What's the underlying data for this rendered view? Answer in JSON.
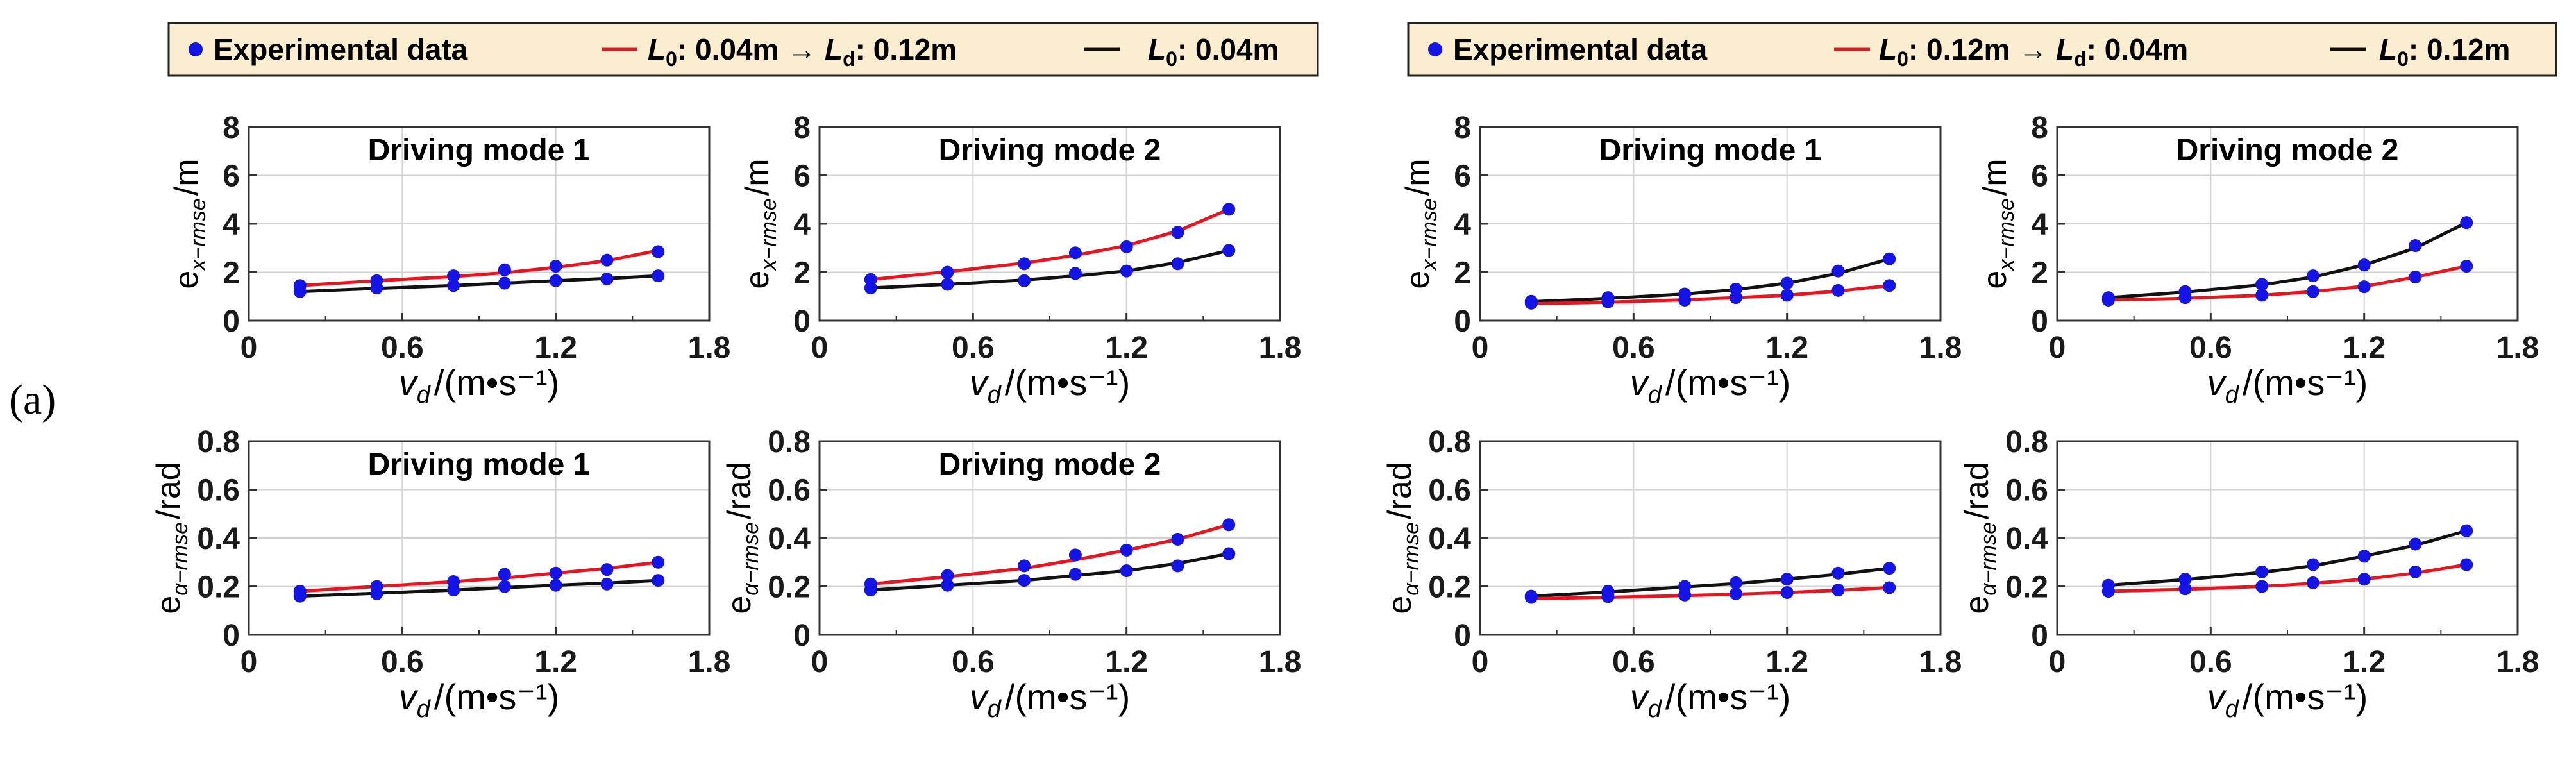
{
  "panel_label": "(a)",
  "colors": {
    "experimental": "#1414e6",
    "red_model": "#e8141e",
    "black_model": "#111111",
    "legend_bg": "#fbeed0"
  },
  "legends": [
    {
      "experimental": "Experimental data",
      "red": {
        "prefix": "L",
        "sub": "0",
        "mid": ": 0.04m → ",
        "prefix2": "L",
        "sub2": "d",
        "suffix": ": 0.12m"
      },
      "black": {
        "prefix": "L",
        "sub": "0",
        "suffix": ": 0.04m"
      }
    },
    {
      "experimental": "Experimental data",
      "red": {
        "prefix": "L",
        "sub": "0",
        "mid": ": 0.12m → ",
        "prefix2": "L",
        "sub2": "d",
        "suffix": ": 0.04m"
      },
      "black": {
        "prefix": "L",
        "sub": "0",
        "suffix": ": 0.12m"
      }
    }
  ],
  "xlabel": {
    "main": "v",
    "sub": "d",
    "unit": "/(m•s⁻¹)"
  },
  "ylabels": {
    "x": {
      "main": "e",
      "sub": "x−rmse",
      "unit": "/m"
    },
    "alpha": {
      "main": "e",
      "sub": "α−rmse",
      "unit": "/rad"
    }
  },
  "chart_data": [
    {
      "type": "line",
      "title": "Driving mode 1",
      "row": 0,
      "col": 0,
      "legend_group": 0,
      "ykind": "x",
      "xlim": [
        0,
        1.8
      ],
      "ylim": [
        0,
        8
      ],
      "xticks": [
        "0",
        "0.6",
        "1.2",
        "1.8"
      ],
      "xminor": [
        0.3,
        0.9,
        1.5
      ],
      "yticks": [
        "0",
        "2",
        "4",
        "6",
        "8"
      ],
      "grid": true,
      "x": [
        0.2,
        0.5,
        0.8,
        1.0,
        1.2,
        1.4,
        1.6
      ],
      "series": [
        {
          "name": "Experimental data",
          "style": "points",
          "color": "#1414e6",
          "values": [
            1.45,
            1.65,
            1.85,
            2.1,
            2.25,
            2.5,
            2.85
          ]
        },
        {
          "name": "red",
          "style": "line",
          "color": "#e8141e",
          "values": [
            1.45,
            1.65,
            1.82,
            1.98,
            2.2,
            2.48,
            2.9
          ]
        },
        {
          "name": "Experimental data",
          "style": "points",
          "color": "#1414e6",
          "values": [
            1.2,
            1.35,
            1.45,
            1.55,
            1.65,
            1.72,
            1.85
          ]
        },
        {
          "name": "black",
          "style": "line",
          "color": "#111111",
          "values": [
            1.2,
            1.33,
            1.45,
            1.55,
            1.65,
            1.74,
            1.85
          ]
        }
      ]
    },
    {
      "type": "line",
      "title": "Driving mode 2",
      "row": 0,
      "col": 1,
      "legend_group": 0,
      "ykind": "x",
      "xlim": [
        0,
        1.8
      ],
      "ylim": [
        0,
        8
      ],
      "xticks": [
        "0",
        "0.6",
        "1.2",
        "1.8"
      ],
      "xminor": [
        0.3,
        0.9,
        1.5
      ],
      "yticks": [
        "0",
        "2",
        "4",
        "6",
        "8"
      ],
      "grid": true,
      "x": [
        0.2,
        0.5,
        0.8,
        1.0,
        1.2,
        1.4,
        1.6
      ],
      "series": [
        {
          "name": "Experimental data",
          "style": "points",
          "color": "#1414e6",
          "values": [
            1.7,
            2.0,
            2.35,
            2.8,
            3.05,
            3.65,
            4.6
          ]
        },
        {
          "name": "red",
          "style": "line",
          "color": "#e8141e",
          "values": [
            1.7,
            2.02,
            2.38,
            2.7,
            3.1,
            3.7,
            4.6
          ]
        },
        {
          "name": "Experimental data",
          "style": "points",
          "color": "#1414e6",
          "values": [
            1.35,
            1.5,
            1.65,
            1.95,
            2.05,
            2.35,
            2.9
          ]
        },
        {
          "name": "black",
          "style": "line",
          "color": "#111111",
          "values": [
            1.35,
            1.5,
            1.68,
            1.85,
            2.05,
            2.4,
            2.9
          ]
        }
      ]
    },
    {
      "type": "line",
      "title": "Driving mode 1",
      "row": 0,
      "col": 2,
      "legend_group": 1,
      "ykind": "x",
      "xlim": [
        0,
        1.8
      ],
      "ylim": [
        0,
        8
      ],
      "xticks": [
        "0",
        "0.6",
        "1.2",
        "1.8"
      ],
      "xminor": [
        0.3,
        0.9,
        1.5
      ],
      "yticks": [
        "0",
        "2",
        "4",
        "6",
        "8"
      ],
      "grid": true,
      "x": [
        0.2,
        0.5,
        0.8,
        1.0,
        1.2,
        1.4,
        1.6
      ],
      "series": [
        {
          "name": "Experimental data",
          "style": "points",
          "color": "#1414e6",
          "values": [
            0.8,
            0.95,
            1.1,
            1.3,
            1.55,
            2.05,
            2.55
          ]
        },
        {
          "name": "black",
          "style": "line",
          "color": "#111111",
          "values": [
            0.78,
            0.92,
            1.1,
            1.28,
            1.55,
            1.95,
            2.55
          ]
        },
        {
          "name": "Experimental data",
          "style": "points",
          "color": "#1414e6",
          "values": [
            0.72,
            0.78,
            0.85,
            0.95,
            1.05,
            1.25,
            1.45
          ]
        },
        {
          "name": "red",
          "style": "line",
          "color": "#e8141e",
          "values": [
            0.7,
            0.76,
            0.86,
            0.95,
            1.05,
            1.22,
            1.45
          ]
        }
      ]
    },
    {
      "type": "line",
      "title": "Driving mode 2",
      "row": 0,
      "col": 3,
      "legend_group": 1,
      "ykind": "x",
      "xlim": [
        0,
        1.8
      ],
      "ylim": [
        0,
        8
      ],
      "xticks": [
        "0",
        "0.6",
        "1.2",
        "1.8"
      ],
      "xminor": [
        0.3,
        0.9,
        1.5
      ],
      "yticks": [
        "0",
        "2",
        "4",
        "6",
        "8"
      ],
      "grid": true,
      "x": [
        0.2,
        0.5,
        0.8,
        1.0,
        1.2,
        1.4,
        1.6
      ],
      "series": [
        {
          "name": "Experimental data",
          "style": "points",
          "color": "#1414e6",
          "values": [
            0.95,
            1.2,
            1.5,
            1.85,
            2.3,
            3.1,
            4.05
          ]
        },
        {
          "name": "black",
          "style": "line",
          "color": "#111111",
          "values": [
            0.95,
            1.18,
            1.48,
            1.8,
            2.3,
            3.0,
            4.05
          ]
        },
        {
          "name": "Experimental data",
          "style": "points",
          "color": "#1414e6",
          "values": [
            0.85,
            0.95,
            1.05,
            1.2,
            1.4,
            1.8,
            2.25
          ]
        },
        {
          "name": "red",
          "style": "line",
          "color": "#e8141e",
          "values": [
            0.85,
            0.92,
            1.05,
            1.2,
            1.42,
            1.8,
            2.25
          ]
        }
      ]
    },
    {
      "type": "line",
      "title": "Driving mode 1",
      "row": 1,
      "col": 0,
      "legend_group": 0,
      "ykind": "alpha",
      "xlim": [
        0,
        1.8
      ],
      "ylim": [
        0,
        0.8
      ],
      "xticks": [
        "0",
        "0.6",
        "1.2",
        "1.8"
      ],
      "xminor": [
        0.3,
        0.9,
        1.5
      ],
      "yticks": [
        "0",
        "0.2",
        "0.4",
        "0.6",
        "0.8"
      ],
      "grid": true,
      "x": [
        0.2,
        0.5,
        0.8,
        1.0,
        1.2,
        1.4,
        1.6
      ],
      "series": [
        {
          "name": "Experimental data",
          "style": "points",
          "color": "#1414e6",
          "values": [
            0.18,
            0.2,
            0.22,
            0.25,
            0.255,
            0.27,
            0.3
          ]
        },
        {
          "name": "red",
          "style": "line",
          "color": "#e8141e",
          "values": [
            0.18,
            0.2,
            0.22,
            0.235,
            0.255,
            0.275,
            0.3
          ]
        },
        {
          "name": "Experimental data",
          "style": "points",
          "color": "#1414e6",
          "values": [
            0.16,
            0.17,
            0.185,
            0.2,
            0.205,
            0.21,
            0.225
          ]
        },
        {
          "name": "black",
          "style": "line",
          "color": "#111111",
          "values": [
            0.16,
            0.172,
            0.185,
            0.195,
            0.205,
            0.214,
            0.225
          ]
        }
      ]
    },
    {
      "type": "line",
      "title": "Driving mode 2",
      "row": 1,
      "col": 1,
      "legend_group": 0,
      "ykind": "alpha",
      "xlim": [
        0,
        1.8
      ],
      "ylim": [
        0,
        0.8
      ],
      "xticks": [
        "0",
        "0.6",
        "1.2",
        "1.8"
      ],
      "xminor": [
        0.3,
        0.9,
        1.5
      ],
      "yticks": [
        "0",
        "0.2",
        "0.4",
        "0.6",
        "0.8"
      ],
      "grid": true,
      "x": [
        0.2,
        0.5,
        0.8,
        1.0,
        1.2,
        1.4,
        1.6
      ],
      "series": [
        {
          "name": "Experimental data",
          "style": "points",
          "color": "#1414e6",
          "values": [
            0.21,
            0.245,
            0.285,
            0.33,
            0.35,
            0.395,
            0.455
          ]
        },
        {
          "name": "red",
          "style": "line",
          "color": "#e8141e",
          "values": [
            0.21,
            0.24,
            0.275,
            0.31,
            0.35,
            0.395,
            0.455
          ]
        },
        {
          "name": "Experimental data",
          "style": "points",
          "color": "#1414e6",
          "values": [
            0.185,
            0.205,
            0.225,
            0.25,
            0.265,
            0.285,
            0.335
          ]
        },
        {
          "name": "black",
          "style": "line",
          "color": "#111111",
          "values": [
            0.185,
            0.205,
            0.225,
            0.245,
            0.265,
            0.295,
            0.335
          ]
        }
      ]
    },
    {
      "type": "line",
      "title": "",
      "row": 1,
      "col": 2,
      "legend_group": 1,
      "ykind": "alpha",
      "xlim": [
        0,
        1.8
      ],
      "ylim": [
        0,
        0.8
      ],
      "xticks": [
        "0",
        "0.6",
        "1.2",
        "1.8"
      ],
      "xminor": [
        0.3,
        0.9,
        1.5
      ],
      "yticks": [
        "0",
        "0.2",
        "0.4",
        "0.6",
        "0.8"
      ],
      "grid": true,
      "x": [
        0.2,
        0.5,
        0.8,
        1.0,
        1.2,
        1.4,
        1.6
      ],
      "series": [
        {
          "name": "Experimental data",
          "style": "points",
          "color": "#1414e6",
          "values": [
            0.16,
            0.18,
            0.2,
            0.215,
            0.23,
            0.255,
            0.275
          ]
        },
        {
          "name": "black",
          "style": "line",
          "color": "#111111",
          "values": [
            0.16,
            0.177,
            0.198,
            0.212,
            0.23,
            0.25,
            0.275
          ]
        },
        {
          "name": "Experimental data",
          "style": "points",
          "color": "#1414e6",
          "values": [
            0.155,
            0.158,
            0.165,
            0.17,
            0.175,
            0.185,
            0.195
          ]
        },
        {
          "name": "red",
          "style": "line",
          "color": "#e8141e",
          "values": [
            0.15,
            0.155,
            0.162,
            0.168,
            0.175,
            0.184,
            0.195
          ]
        }
      ]
    },
    {
      "type": "line",
      "title": "",
      "row": 1,
      "col": 3,
      "legend_group": 1,
      "ykind": "alpha",
      "xlim": [
        0,
        1.8
      ],
      "ylim": [
        0,
        0.8
      ],
      "xticks": [
        "0",
        "0.6",
        "1.2",
        "1.8"
      ],
      "xminor": [
        0.3,
        0.9,
        1.5
      ],
      "yticks": [
        "0",
        "0.2",
        "0.4",
        "0.6",
        "0.8"
      ],
      "grid": true,
      "x": [
        0.2,
        0.5,
        0.8,
        1.0,
        1.2,
        1.4,
        1.6
      ],
      "series": [
        {
          "name": "Experimental data",
          "style": "points",
          "color": "#1414e6",
          "values": [
            0.205,
            0.23,
            0.26,
            0.29,
            0.325,
            0.375,
            0.43
          ]
        },
        {
          "name": "black",
          "style": "line",
          "color": "#111111",
          "values": [
            0.205,
            0.228,
            0.258,
            0.285,
            0.325,
            0.37,
            0.43
          ]
        },
        {
          "name": "Experimental data",
          "style": "points",
          "color": "#1414e6",
          "values": [
            0.18,
            0.19,
            0.2,
            0.215,
            0.23,
            0.26,
            0.29
          ]
        },
        {
          "name": "red",
          "style": "line",
          "color": "#e8141e",
          "values": [
            0.18,
            0.188,
            0.2,
            0.213,
            0.23,
            0.255,
            0.29
          ]
        }
      ]
    }
  ]
}
